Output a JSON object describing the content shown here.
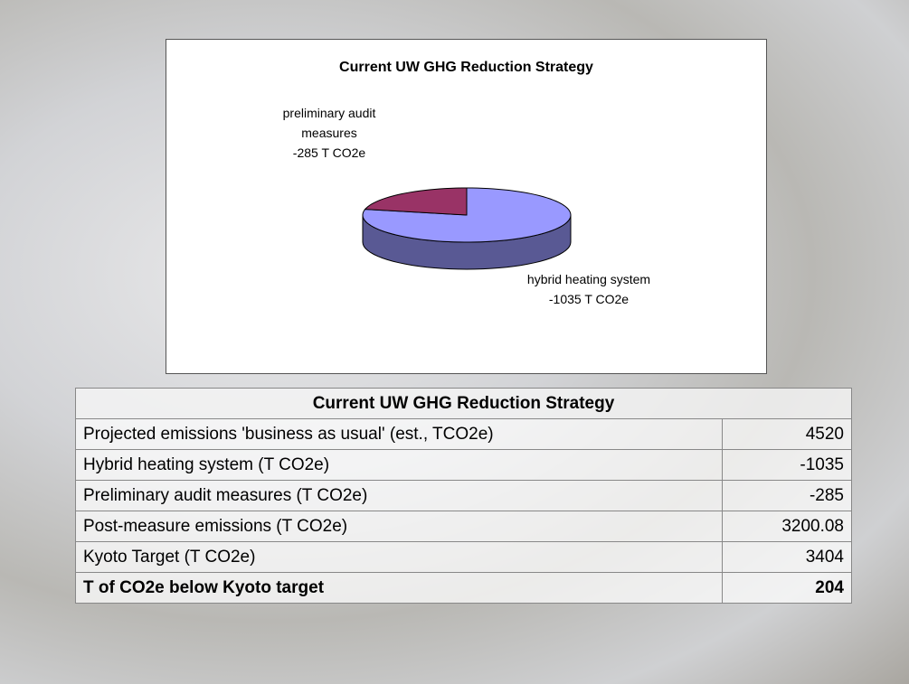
{
  "chart_data": {
    "type": "pie",
    "title": "Current UW GHG Reduction Strategy",
    "categories": [
      "hybrid heating system",
      "preliminary audit measures"
    ],
    "values": [
      -1035,
      -285
    ],
    "value_labels": [
      "-1035 T CO2e",
      "-285 T CO2e"
    ],
    "colors": [
      "#9999ff",
      "#993366"
    ]
  },
  "table": {
    "title": "Current UW GHG Reduction Strategy",
    "rows": [
      [
        "Projected emissions 'business as usual' (est., TCO2e)",
        4520
      ],
      [
        "Hybrid heating system (T CO2e)",
        -1035
      ],
      [
        "Preliminary audit measures (T CO2e)",
        -285
      ],
      [
        "Post-measure emissions (T CO2e)",
        3200.08
      ],
      [
        "Kyoto Target (T CO2e)",
        3404
      ],
      [
        "T of CO2e below Kyoto target",
        204
      ]
    ]
  }
}
